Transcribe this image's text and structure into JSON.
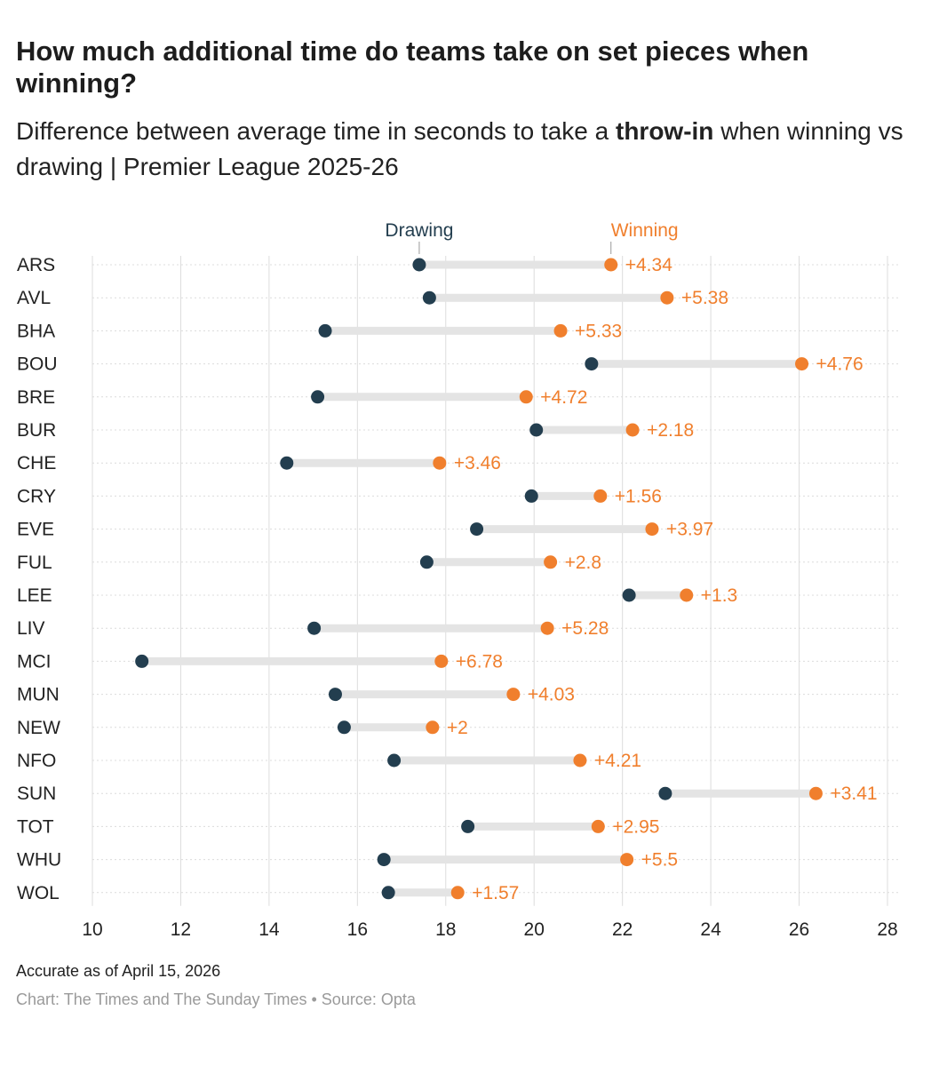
{
  "title": "How much additional time do teams take on set pieces when winning?",
  "subtitle": {
    "before": "Difference between average time in seconds to take a ",
    "bold": "throw-in",
    "after": " when winning vs drawing | Premier League 2025-26"
  },
  "note": "Accurate as of April 15, 2026",
  "credit": "Chart: The Times and The Sunday Times • Source: Opta",
  "colors": {
    "drawing": "#233e4f",
    "winning": "#f07f2d",
    "bar": "#e4e4e4",
    "grid": "#dcdcdc",
    "text": "#222222"
  },
  "chart_data": {
    "type": "dumbbell",
    "xlim": [
      10,
      28
    ],
    "xticks": [
      10,
      12,
      14,
      16,
      18,
      20,
      22,
      24,
      26,
      28
    ],
    "grid": true,
    "legend": {
      "drawing": "Drawing",
      "winning": "Winning"
    },
    "teams": [
      {
        "team": "ARS",
        "drawing": 17.4,
        "winning": 21.74,
        "diff": "+4.34"
      },
      {
        "team": "AVL",
        "drawing": 17.63,
        "winning": 23.01,
        "diff": "+5.38"
      },
      {
        "team": "BHA",
        "drawing": 15.27,
        "winning": 20.6,
        "diff": "+5.33"
      },
      {
        "team": "BOU",
        "drawing": 21.3,
        "winning": 26.06,
        "diff": "+4.76"
      },
      {
        "team": "BRE",
        "drawing": 15.1,
        "winning": 19.82,
        "diff": "+4.72"
      },
      {
        "team": "BUR",
        "drawing": 20.05,
        "winning": 22.23,
        "diff": "+2.18"
      },
      {
        "team": "CHE",
        "drawing": 14.4,
        "winning": 17.86,
        "diff": "+3.46"
      },
      {
        "team": "CRY",
        "drawing": 19.94,
        "winning": 21.5,
        "diff": "+1.56"
      },
      {
        "team": "EVE",
        "drawing": 18.7,
        "winning": 22.67,
        "diff": "+3.97"
      },
      {
        "team": "FUL",
        "drawing": 17.57,
        "winning": 20.37,
        "diff": "+2.8"
      },
      {
        "team": "LEE",
        "drawing": 22.15,
        "winning": 23.45,
        "diff": "+1.3"
      },
      {
        "team": "LIV",
        "drawing": 15.02,
        "winning": 20.3,
        "diff": "+5.28"
      },
      {
        "team": "MCI",
        "drawing": 11.12,
        "winning": 17.9,
        "diff": "+6.78"
      },
      {
        "team": "MUN",
        "drawing": 15.5,
        "winning": 19.53,
        "diff": "+4.03"
      },
      {
        "team": "NEW",
        "drawing": 15.7,
        "winning": 17.7,
        "diff": "+2"
      },
      {
        "team": "NFO",
        "drawing": 16.83,
        "winning": 21.04,
        "diff": "+4.21"
      },
      {
        "team": "SUN",
        "drawing": 22.97,
        "winning": 26.38,
        "diff": "+3.41"
      },
      {
        "team": "TOT",
        "drawing": 18.5,
        "winning": 21.45,
        "diff": "+2.95"
      },
      {
        "team": "WHU",
        "drawing": 16.6,
        "winning": 22.1,
        "diff": "+5.5"
      },
      {
        "team": "WOL",
        "drawing": 16.7,
        "winning": 18.27,
        "diff": "+1.57"
      }
    ]
  }
}
